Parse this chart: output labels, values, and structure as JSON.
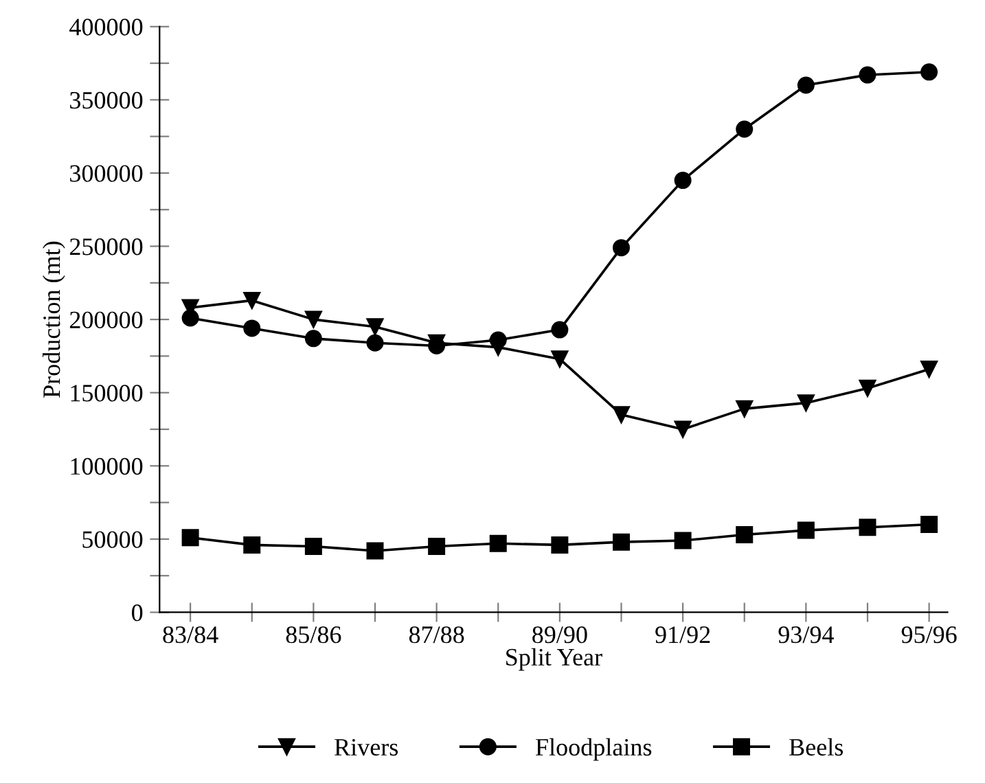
{
  "chart_data": {
    "type": "line",
    "xlabel": "Split Year",
    "ylabel": "Production (mt)",
    "categories": [
      "83/84",
      null,
      "85/86",
      null,
      "87/88",
      null,
      "89/90",
      null,
      "91/92",
      null,
      "93/94",
      null,
      "95/96"
    ],
    "series": [
      {
        "name": "Rivers",
        "color": "#000000",
        "marker": "triangle",
        "values": [
          208000,
          213000,
          200000,
          195000,
          184000,
          181000,
          173000,
          135000,
          125000,
          139000,
          143000,
          153000,
          166000
        ]
      },
      {
        "name": "Floodplains",
        "color": "#000000",
        "marker": "circle",
        "values": [
          201000,
          194000,
          187000,
          184000,
          182000,
          186000,
          193000,
          249000,
          295000,
          330000,
          360000,
          367000,
          369000
        ]
      },
      {
        "name": "Beels",
        "color": "#000000",
        "marker": "square",
        "values": [
          51000,
          46000,
          45000,
          42000,
          45000,
          47000,
          46000,
          48000,
          49000,
          53000,
          56000,
          58000,
          60000
        ]
      }
    ],
    "ylim": [
      0,
      400000
    ],
    "yticks": [
      0,
      {
        "value": 25000,
        "label": null
      },
      50000,
      {
        "value": 75000,
        "label": null
      },
      100000,
      {
        "value": 125000,
        "label": null
      },
      150000,
      {
        "value": 175000,
        "label": null
      },
      200000,
      {
        "value": 225000,
        "label": null
      },
      250000,
      {
        "value": 275000,
        "label": null
      },
      300000,
      {
        "value": 325000,
        "label": null
      },
      350000,
      {
        "value": 375000,
        "label": null
      },
      400000
    ],
    "grid": false,
    "legend": "bottom",
    "line_style": "solid"
  }
}
